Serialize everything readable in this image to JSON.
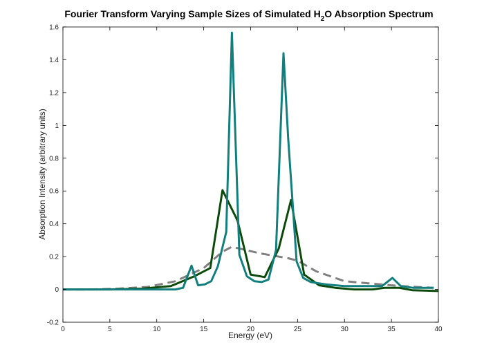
{
  "chart_data": {
    "type": "line",
    "title": {
      "main": "Fourier Transform Varying Sample Sizes of Simulated H",
      "subscript": "2",
      "tail": "O Absorption Spectrum"
    },
    "xlabel": "Energy (eV)",
    "ylabel": "Absorption Intensity (arbitrary units)",
    "xlim": [
      0,
      40
    ],
    "ylim": [
      -0.2,
      1.6
    ],
    "xticks": [
      0,
      5,
      10,
      15,
      20,
      25,
      30,
      35,
      40
    ],
    "yticks": [
      -0.2,
      0,
      0.2,
      0.4,
      0.6,
      0.8,
      1,
      1.2,
      1.4,
      1.6
    ],
    "xtick_labels": [
      "0",
      "5",
      "10",
      "15",
      "20",
      "25",
      "30",
      "35",
      "40"
    ],
    "ytick_labels": [
      "-0.2",
      "0",
      "0.2",
      "0.4",
      "0.6",
      "0.8",
      "1",
      "1.2",
      "1.4",
      "1.6"
    ],
    "grid": false,
    "series": [
      {
        "color": "#808080",
        "dashed": true,
        "x": [
          0,
          3,
          6,
          9,
          12,
          15,
          17,
          18,
          21,
          24,
          25,
          27,
          30,
          33,
          36,
          39.5
        ],
        "y": [
          0.0,
          0.0,
          0.005,
          0.015,
          0.05,
          0.13,
          0.23,
          0.26,
          0.22,
          0.19,
          0.175,
          0.11,
          0.05,
          0.035,
          0.02,
          0.01
        ]
      },
      {
        "color": "#0b4a0b",
        "dashed": false,
        "x": [
          0,
          5,
          8.5,
          11.5,
          14,
          15.7,
          17,
          18.6,
          20,
          21.5,
          23,
          24.3,
          25.7,
          27.3,
          29,
          31,
          33,
          34.3,
          35.8,
          37.2,
          40
        ],
        "y": [
          0.0,
          0.0,
          0.005,
          0.02,
          0.08,
          0.13,
          0.605,
          0.42,
          0.09,
          0.075,
          0.25,
          0.545,
          0.09,
          0.025,
          0.01,
          0.0,
          0.0,
          0.01,
          0.01,
          -0.005,
          -0.01
        ]
      },
      {
        "color": "#127e7e",
        "dashed": false,
        "x": [
          0,
          5,
          11,
          12,
          12.8,
          13.7,
          14.4,
          15.1,
          15.8,
          16.5,
          17.4,
          18,
          18.8,
          19.6,
          20.4,
          21.2,
          21.9,
          22.7,
          23.5,
          24,
          24.9,
          25.6,
          26.4,
          28,
          30,
          32,
          34,
          35.1,
          36,
          37.3,
          39.5
        ],
        "y": [
          0.0,
          0.0,
          0.0,
          0.0,
          0.01,
          0.145,
          0.025,
          0.03,
          0.05,
          0.14,
          0.35,
          1.565,
          0.21,
          0.08,
          0.05,
          0.045,
          0.06,
          0.24,
          1.44,
          0.92,
          0.17,
          0.07,
          0.045,
          0.03,
          0.02,
          0.02,
          0.02,
          0.07,
          0.02,
          0.01,
          0.01
        ]
      }
    ]
  }
}
